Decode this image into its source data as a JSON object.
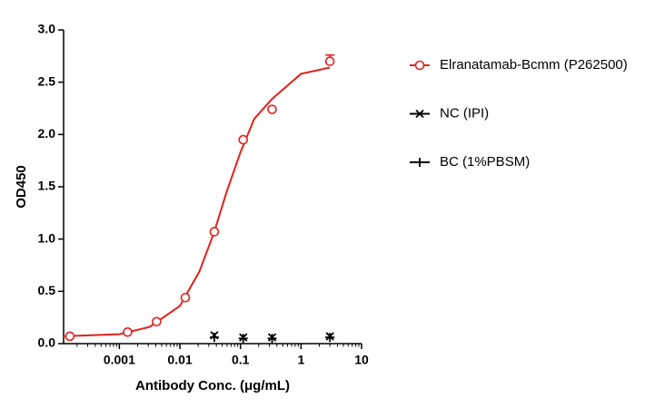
{
  "chart_data": {
    "type": "scatter",
    "x_label": "Antibody Conc. (μg/mL)",
    "y_label": "OD450",
    "xscale": "log",
    "xlim": [
      0.00012,
      10
    ],
    "xticks": [
      0.001,
      0.01,
      0.1,
      1,
      10
    ],
    "ylim": [
      0,
      3
    ],
    "yticks": [
      {
        "value": 0,
        "label": "0.0"
      },
      0.5,
      {
        "value": 1,
        "label": "1.0"
      },
      1.5,
      {
        "value": 2,
        "label": "2.0"
      },
      2.5,
      {
        "value": 3,
        "label": "3.0"
      }
    ],
    "series": [
      {
        "name": "Elranatamab-Bcmm (P262500)",
        "color": "#e3201b",
        "marker": "circle",
        "x": [
          0.000152,
          0.00137,
          0.00412,
          0.0123,
          0.037,
          0.111,
          0.333,
          3
        ],
        "values": [
          0.07,
          0.11,
          0.21,
          0.44,
          1.07,
          1.95,
          2.24,
          2.7
        ],
        "errors": [
          null,
          null,
          null,
          null,
          null,
          null,
          null,
          0.06
        ]
      },
      {
        "name": "NC (IPI)",
        "color": "#000000",
        "marker": "x",
        "x": [
          0.037,
          0.111,
          0.333,
          3
        ],
        "values": [
          0.08,
          0.06,
          0.06,
          0.07
        ]
      },
      {
        "name": "BC (1%PBSM)",
        "color": "#000000",
        "marker": "plus",
        "x": [
          0.037,
          0.111,
          0.333,
          3
        ],
        "values": [
          0.06,
          0.05,
          0.05,
          0.06
        ]
      }
    ],
    "curve": {
      "color": "#e3201b",
      "x": [
        0.00012,
        0.001,
        0.00316,
        0.01,
        0.021,
        0.037,
        0.059,
        0.1,
        0.169,
        0.333,
        1,
        3
      ],
      "y": [
        0.07,
        0.09,
        0.16,
        0.36,
        0.69,
        1.07,
        1.45,
        1.83,
        2.15,
        2.34,
        2.58,
        2.64
      ]
    }
  }
}
